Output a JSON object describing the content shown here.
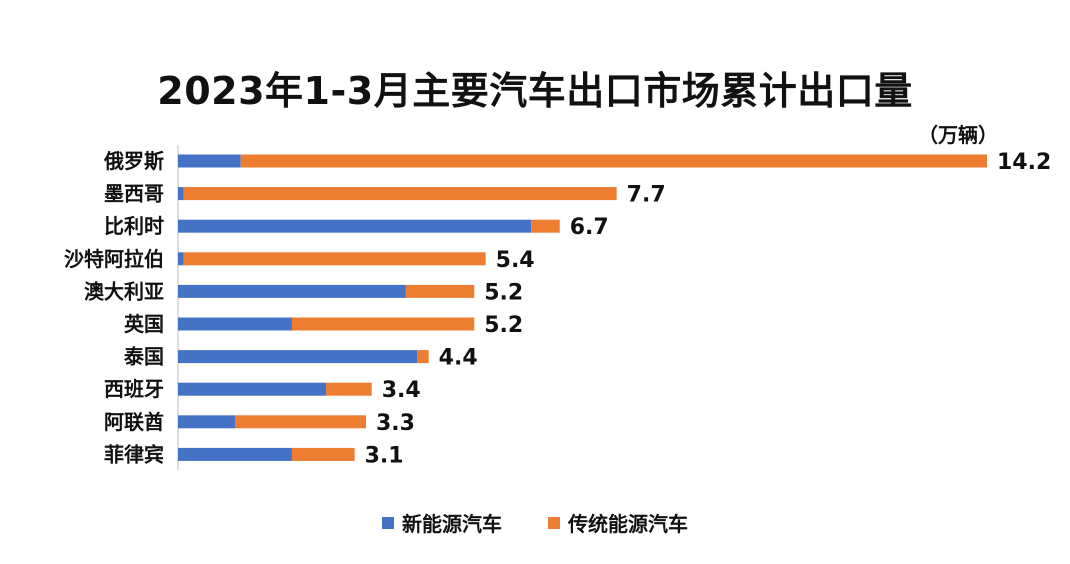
{
  "chart_data": {
    "type": "bar",
    "orientation": "horizontal",
    "stacked": true,
    "title": "2023年1-3月主要汽车出口市场累计出口量",
    "unit": "（万辆）",
    "categories": [
      "俄罗斯",
      "墨西哥",
      "比利时",
      "沙特阿拉伯",
      "澳大利亚",
      "英国",
      "泰国",
      "西班牙",
      "阿联酋",
      "菲律宾"
    ],
    "totals_labels": [
      "14.2",
      "7.7",
      "6.7",
      "5.4",
      "5.2",
      "5.2",
      "4.4",
      "3.4",
      "3.3",
      "3.1"
    ],
    "series": [
      {
        "name": "新能源汽车",
        "color": "#4472c4",
        "values": [
          1.1,
          0.1,
          6.2,
          0.1,
          4.0,
          2.0,
          4.2,
          2.6,
          1.0,
          2.0
        ]
      },
      {
        "name": "传统能源汽车",
        "color": "#ed7d31",
        "values": [
          13.1,
          7.6,
          0.5,
          5.3,
          1.2,
          3.2,
          0.2,
          0.8,
          2.3,
          1.1
        ]
      }
    ],
    "xlim": [
      0,
      14.2
    ],
    "grid": false,
    "legend_position": "bottom"
  }
}
